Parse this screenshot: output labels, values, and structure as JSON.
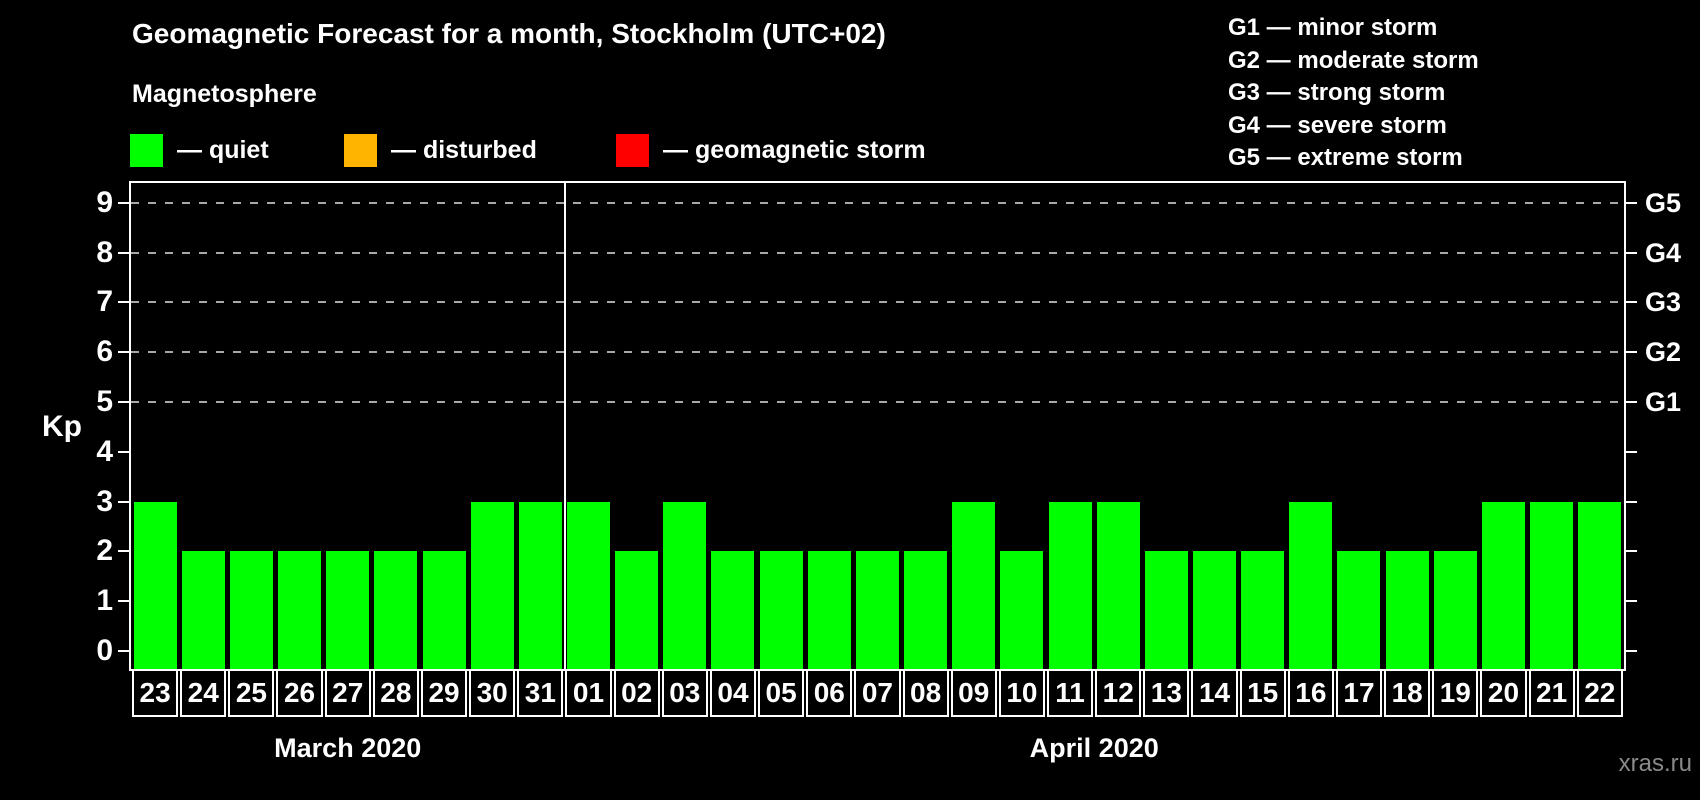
{
  "header": {
    "title": "Geomagnetic Forecast for a month, Stockholm (UTC+02)",
    "subtitle": "Magnetosphere"
  },
  "magnetosphere_legend": [
    {
      "name": "quiet",
      "color": "#00ff00",
      "label": "— quiet"
    },
    {
      "name": "disturbed",
      "color": "#ffb400",
      "label": "— disturbed"
    },
    {
      "name": "geomagnetic-storm",
      "color": "#ff0000",
      "label": "— geomagnetic storm"
    }
  ],
  "storm_scale_legend": [
    "G1 — minor storm",
    "G2 — moderate storm",
    "G3 — strong storm",
    "G4 — severe storm",
    "G5 — extreme storm"
  ],
  "axes": {
    "y_label": "Kp",
    "y_ticks": [
      0,
      1,
      2,
      3,
      4,
      5,
      6,
      7,
      8,
      9
    ],
    "right_labels": [
      {
        "label": "G5",
        "kp": 9
      },
      {
        "label": "G4",
        "kp": 8
      },
      {
        "label": "G3",
        "kp": 7
      },
      {
        "label": "G2",
        "kp": 6
      },
      {
        "label": "G1",
        "kp": 5
      }
    ]
  },
  "chart_data": {
    "type": "bar",
    "title": "Geomagnetic Forecast for a month, Stockholm (UTC+02)",
    "ylabel": "Kp",
    "ylim": [
      0,
      9
    ],
    "legend_position": "top",
    "grid": "horizontal dashed lines at Kp 5,6,7,8,9 only",
    "gridlines_at": [
      5,
      6,
      7,
      8,
      9
    ],
    "bar_color": "#00ff00",
    "categories": [
      "23",
      "24",
      "25",
      "26",
      "27",
      "28",
      "29",
      "30",
      "31",
      "01",
      "02",
      "03",
      "04",
      "05",
      "06",
      "07",
      "08",
      "09",
      "10",
      "11",
      "12",
      "13",
      "14",
      "15",
      "16",
      "17",
      "18",
      "19",
      "20",
      "21",
      "22"
    ],
    "values": [
      3,
      2,
      2,
      2,
      2,
      2,
      2,
      3,
      3,
      3,
      2,
      3,
      2,
      2,
      2,
      2,
      2,
      3,
      2,
      3,
      3,
      2,
      2,
      2,
      3,
      2,
      2,
      2,
      3,
      3,
      3
    ],
    "groups": [
      {
        "label": "March 2020",
        "days": 9
      },
      {
        "label": "April 2020",
        "days": 22
      }
    ]
  },
  "watermark": "xras.ru",
  "colors": {
    "background": "#000000",
    "bar_quiet": "#00ff00",
    "disturbed": "#ffb400",
    "storm": "#ff0000",
    "gridline": "#a8a8a8",
    "text": "#ffffff",
    "watermark": "#8a8a8a"
  }
}
